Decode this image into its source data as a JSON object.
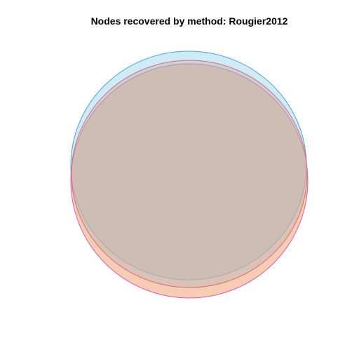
{
  "title": "Nodes recovered by method: Rougier2012",
  "venn": {
    "sets": [
      {
        "id": "set-a",
        "fill": "#87ceeb",
        "stroke": "#4aa3df",
        "opacity": 0.4
      },
      {
        "id": "set-b",
        "fill": "#ee9a6a",
        "stroke": "#d65fb0",
        "opacity": 0.5
      },
      {
        "id": "set-c",
        "fill": "#b8b8b8",
        "stroke": "#e06b6b",
        "opacity": 0.45
      }
    ]
  }
}
